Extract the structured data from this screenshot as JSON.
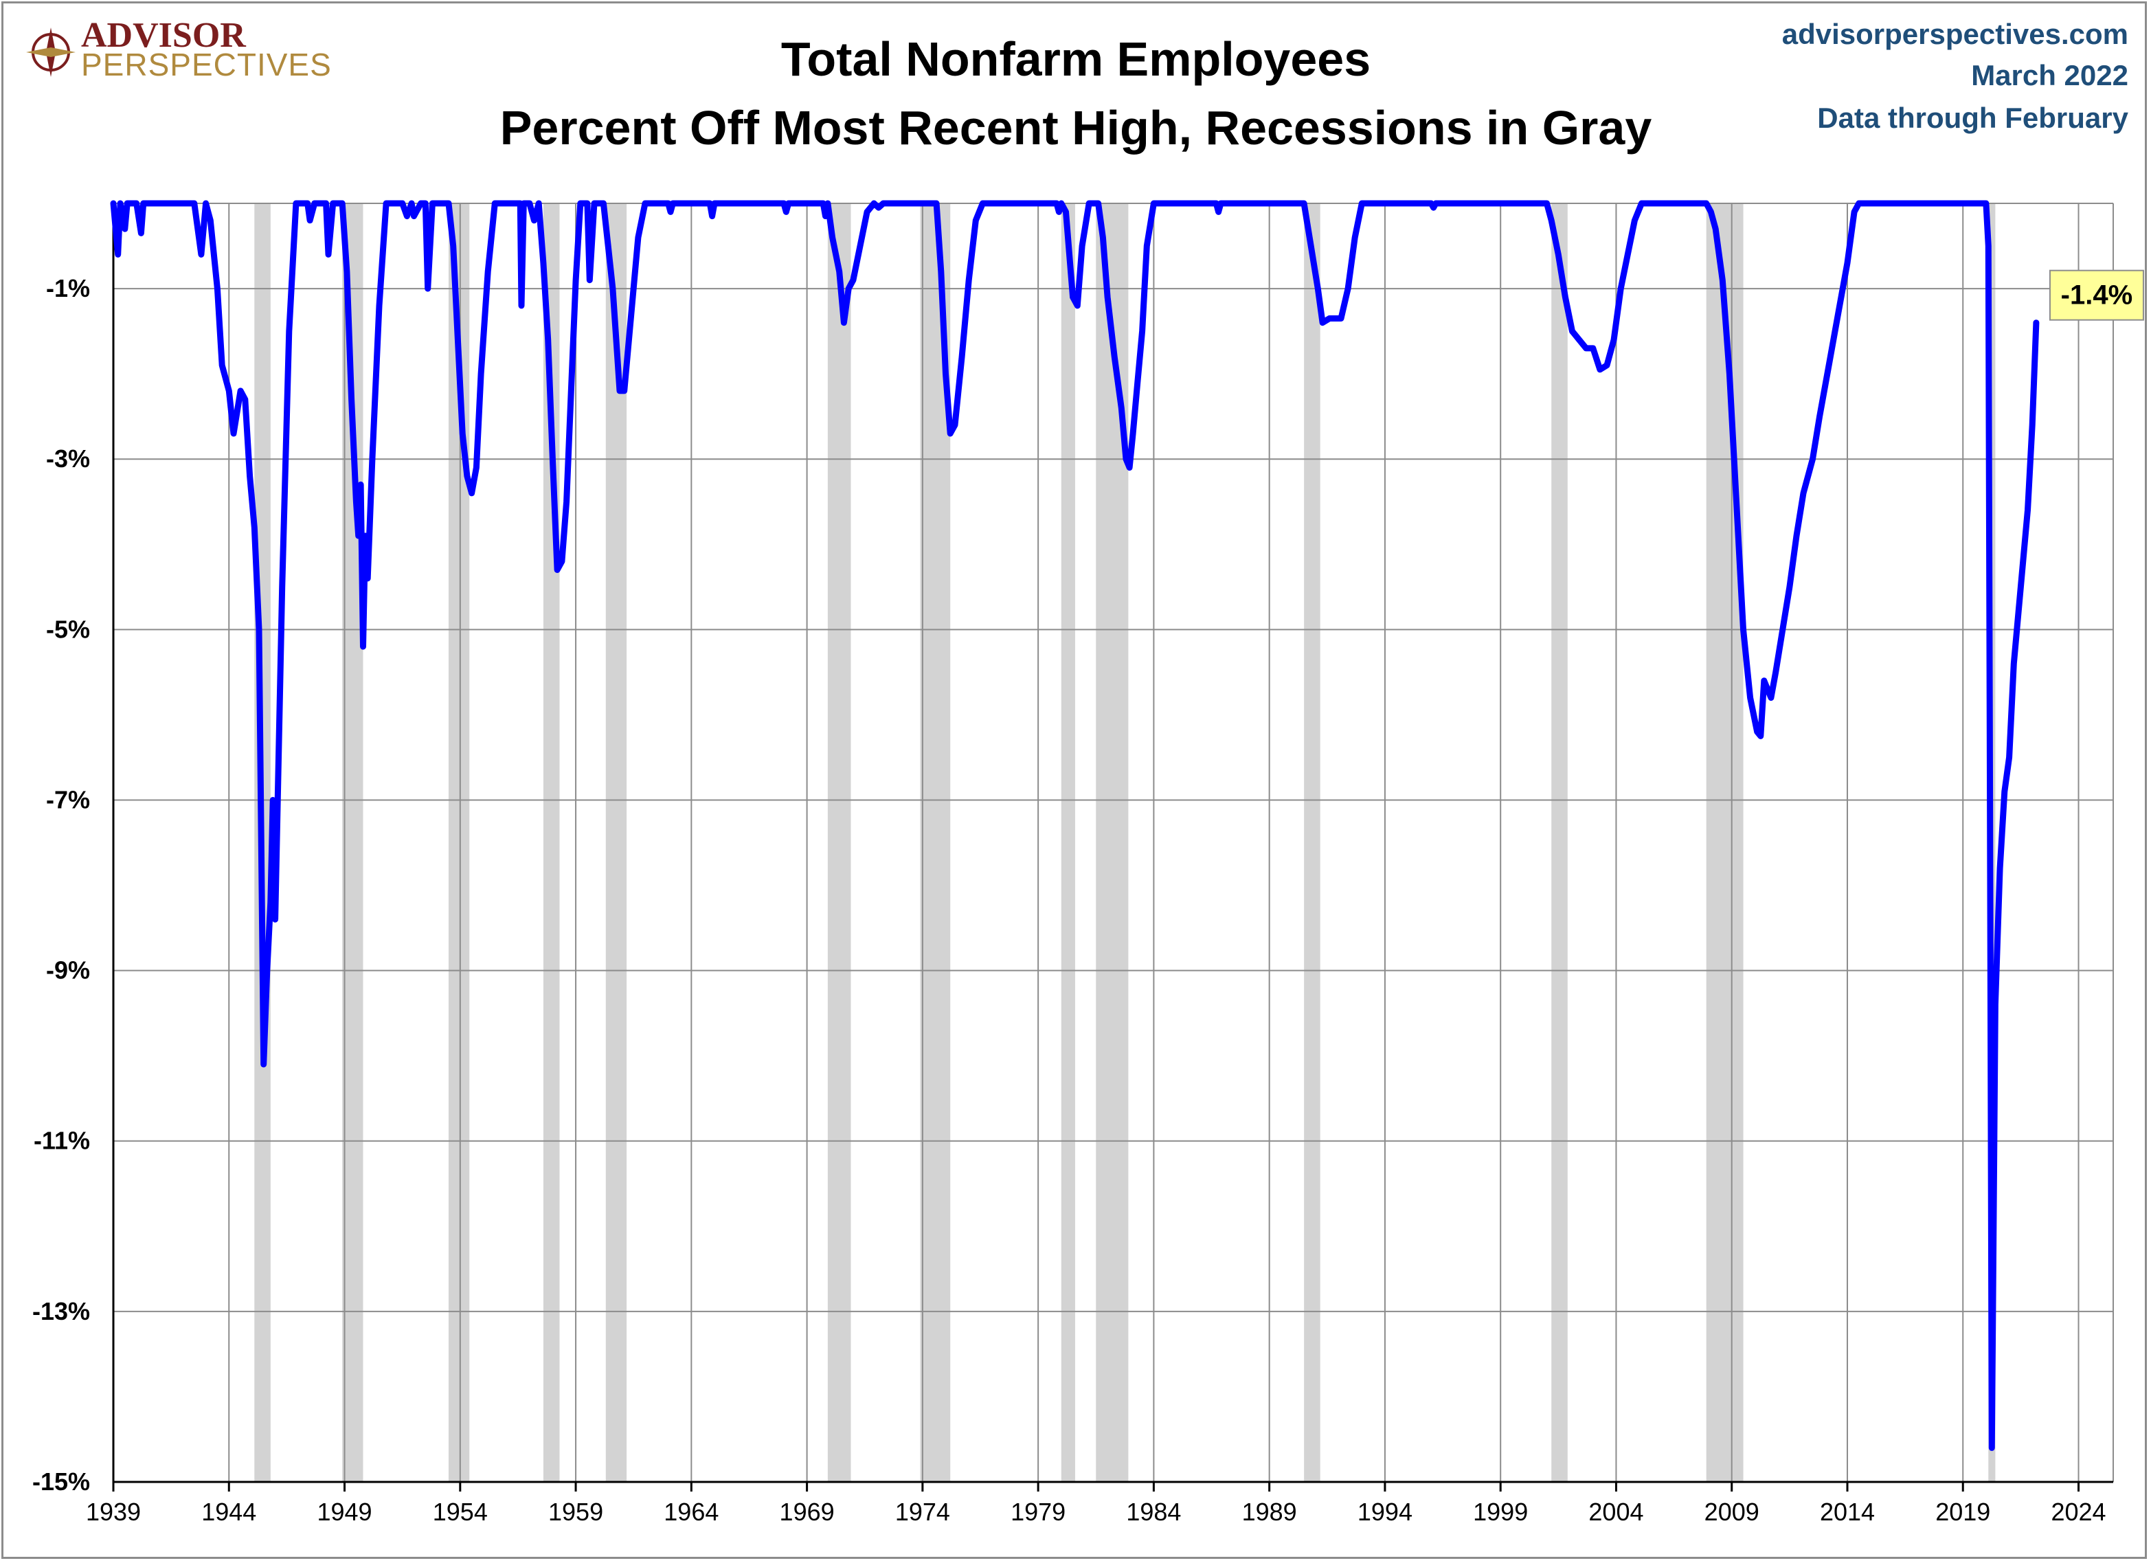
{
  "logo": {
    "line1": "ADVISOR",
    "line2": "PERSPECTIVES"
  },
  "source": {
    "site": "advisorperspectives.com",
    "date": "March 2022",
    "note": "Data through February",
    "color": "#1f4e79"
  },
  "chart_data": {
    "type": "line",
    "title": "Total Nonfarm Employees",
    "subtitle": "Percent Off Most Recent High, Recessions in Gray",
    "xlabel": "",
    "ylabel": "",
    "xlim": [
      1939,
      2025.5
    ],
    "ylim": [
      -15,
      0
    ],
    "x_ticks": [
      1939,
      1944,
      1949,
      1954,
      1959,
      1964,
      1969,
      1974,
      1979,
      1984,
      1989,
      1994,
      1999,
      2004,
      2009,
      2014,
      2019,
      2024
    ],
    "x_tick_labels": [
      "1939",
      "1944",
      "1949",
      "1954",
      "1959",
      "1964",
      "1969",
      "1974",
      "1979",
      "1984",
      "1989",
      "1994",
      "1999",
      "2004",
      "2009",
      "2014",
      "2019",
      "2024"
    ],
    "y_ticks": [
      -1,
      -3,
      -5,
      -7,
      -9,
      -11,
      -13,
      -15
    ],
    "y_tick_labels": [
      "-1%",
      "-3%",
      "-5%",
      "-7%",
      "-9%",
      "-11%",
      "-13%",
      "-15%"
    ],
    "grid": true,
    "line_color": "#0000ff",
    "recession_color": "#d3d3d3",
    "recessions": [
      [
        1945.1,
        1945.8
      ],
      [
        1948.9,
        1949.8
      ],
      [
        1953.5,
        1954.4
      ],
      [
        1957.6,
        1958.3
      ],
      [
        1960.3,
        1961.2
      ],
      [
        1969.9,
        1970.9
      ],
      [
        1973.9,
        1975.2
      ],
      [
        1980.0,
        1980.6
      ],
      [
        1981.5,
        1982.9
      ],
      [
        1990.5,
        1991.2
      ],
      [
        2001.2,
        2001.9
      ],
      [
        2007.9,
        2009.5
      ],
      [
        2020.1,
        2020.4
      ]
    ],
    "series": [
      {
        "points": [
          [
            1939.0,
            0
          ],
          [
            1939.2,
            -0.6
          ],
          [
            1939.3,
            0
          ],
          [
            1939.5,
            -0.3
          ],
          [
            1939.6,
            0
          ],
          [
            1940.0,
            0
          ],
          [
            1940.2,
            -0.35
          ],
          [
            1940.3,
            0
          ],
          [
            1941.0,
            0
          ],
          [
            1942.5,
            0
          ],
          [
            1942.8,
            -0.6
          ],
          [
            1943.0,
            0
          ],
          [
            1943.2,
            -0.2
          ],
          [
            1943.5,
            -1.0
          ],
          [
            1943.7,
            -1.9
          ],
          [
            1944.0,
            -2.2
          ],
          [
            1944.2,
            -2.7
          ],
          [
            1944.5,
            -2.2
          ],
          [
            1944.7,
            -2.3
          ],
          [
            1944.9,
            -3.2
          ],
          [
            1945.1,
            -3.8
          ],
          [
            1945.3,
            -5.0
          ],
          [
            1945.5,
            -10.1
          ],
          [
            1945.65,
            -9.0
          ],
          [
            1945.8,
            -8.2
          ],
          [
            1945.9,
            -7.0
          ],
          [
            1946.0,
            -8.4
          ],
          [
            1946.3,
            -4.5
          ],
          [
            1946.6,
            -1.5
          ],
          [
            1946.9,
            0
          ],
          [
            1947.4,
            0
          ],
          [
            1947.5,
            -0.2
          ],
          [
            1947.7,
            0
          ],
          [
            1948.2,
            0
          ],
          [
            1948.3,
            -0.6
          ],
          [
            1948.5,
            0
          ],
          [
            1948.9,
            0
          ],
          [
            1949.1,
            -0.8
          ],
          [
            1949.3,
            -2.3
          ],
          [
            1949.5,
            -3.5
          ],
          [
            1949.6,
            -3.9
          ],
          [
            1949.7,
            -3.3
          ],
          [
            1949.8,
            -5.2
          ],
          [
            1949.9,
            -3.9
          ],
          [
            1950.0,
            -4.4
          ],
          [
            1950.2,
            -3.0
          ],
          [
            1950.5,
            -1.2
          ],
          [
            1950.8,
            0
          ],
          [
            1951.5,
            0
          ],
          [
            1951.7,
            -0.15
          ],
          [
            1951.9,
            0
          ],
          [
            1952.0,
            -0.15
          ],
          [
            1952.3,
            0
          ],
          [
            1952.5,
            0
          ],
          [
            1952.6,
            -1.0
          ],
          [
            1952.8,
            0
          ],
          [
            1953.5,
            0
          ],
          [
            1953.7,
            -0.5
          ],
          [
            1953.9,
            -1.6
          ],
          [
            1954.1,
            -2.7
          ],
          [
            1954.3,
            -3.2
          ],
          [
            1954.5,
            -3.4
          ],
          [
            1954.7,
            -3.1
          ],
          [
            1954.9,
            -2.0
          ],
          [
            1955.2,
            -0.8
          ],
          [
            1955.5,
            0
          ],
          [
            1956.6,
            0
          ],
          [
            1956.65,
            -1.2
          ],
          [
            1956.75,
            0
          ],
          [
            1957.0,
            0
          ],
          [
            1957.2,
            -0.2
          ],
          [
            1957.4,
            0
          ],
          [
            1957.6,
            -0.7
          ],
          [
            1957.8,
            -1.6
          ],
          [
            1958.0,
            -3.0
          ],
          [
            1958.2,
            -4.3
          ],
          [
            1958.4,
            -4.2
          ],
          [
            1958.6,
            -3.5
          ],
          [
            1958.8,
            -2.2
          ],
          [
            1959.0,
            -0.9
          ],
          [
            1959.2,
            0
          ],
          [
            1959.5,
            0
          ],
          [
            1959.6,
            -0.9
          ],
          [
            1959.8,
            0
          ],
          [
            1960.2,
            0
          ],
          [
            1960.4,
            -0.5
          ],
          [
            1960.6,
            -1.0
          ],
          [
            1960.9,
            -2.2
          ],
          [
            1961.1,
            -2.2
          ],
          [
            1961.4,
            -1.3
          ],
          [
            1961.7,
            -0.4
          ],
          [
            1962.0,
            0
          ],
          [
            1963.0,
            0
          ],
          [
            1963.1,
            -0.1
          ],
          [
            1963.2,
            0
          ],
          [
            1964.8,
            0
          ],
          [
            1964.9,
            -0.15
          ],
          [
            1965.0,
            0
          ],
          [
            1968.0,
            0
          ],
          [
            1968.1,
            -0.1
          ],
          [
            1968.2,
            0
          ],
          [
            1969.7,
            0
          ],
          [
            1969.8,
            -0.15
          ],
          [
            1969.9,
            0
          ],
          [
            1970.1,
            -0.4
          ],
          [
            1970.4,
            -0.8
          ],
          [
            1970.6,
            -1.4
          ],
          [
            1970.8,
            -1.0
          ],
          [
            1971.0,
            -0.9
          ],
          [
            1971.3,
            -0.5
          ],
          [
            1971.6,
            -0.1
          ],
          [
            1971.9,
            0
          ],
          [
            1972.1,
            -0.05
          ],
          [
            1972.3,
            0
          ],
          [
            1974.6,
            0
          ],
          [
            1974.8,
            -0.8
          ],
          [
            1975.0,
            -2.0
          ],
          [
            1975.2,
            -2.7
          ],
          [
            1975.4,
            -2.6
          ],
          [
            1975.7,
            -1.8
          ],
          [
            1976.0,
            -0.9
          ],
          [
            1976.3,
            -0.2
          ],
          [
            1976.6,
            0
          ],
          [
            1979.8,
            0
          ],
          [
            1979.9,
            -0.1
          ],
          [
            1980.0,
            0
          ],
          [
            1980.2,
            -0.1
          ],
          [
            1980.5,
            -1.1
          ],
          [
            1980.7,
            -1.2
          ],
          [
            1980.9,
            -0.5
          ],
          [
            1981.2,
            0
          ],
          [
            1981.6,
            0
          ],
          [
            1981.8,
            -0.4
          ],
          [
            1982.0,
            -1.1
          ],
          [
            1982.3,
            -1.8
          ],
          [
            1982.6,
            -2.4
          ],
          [
            1982.8,
            -3.0
          ],
          [
            1982.95,
            -3.1
          ],
          [
            1983.1,
            -2.7
          ],
          [
            1983.3,
            -2.1
          ],
          [
            1983.5,
            -1.5
          ],
          [
            1983.7,
            -0.5
          ],
          [
            1984.0,
            0
          ],
          [
            1986.7,
            0
          ],
          [
            1986.8,
            -0.1
          ],
          [
            1986.9,
            0
          ],
          [
            1990.5,
            0
          ],
          [
            1990.8,
            -0.5
          ],
          [
            1991.1,
            -1.0
          ],
          [
            1991.3,
            -1.4
          ],
          [
            1991.6,
            -1.35
          ],
          [
            1991.9,
            -1.35
          ],
          [
            1992.1,
            -1.35
          ],
          [
            1992.4,
            -1.0
          ],
          [
            1992.7,
            -0.4
          ],
          [
            1993.0,
            0
          ],
          [
            1996.0,
            0
          ],
          [
            1996.1,
            -0.05
          ],
          [
            1996.2,
            0
          ],
          [
            2001.0,
            0
          ],
          [
            2001.2,
            -0.2
          ],
          [
            2001.5,
            -0.6
          ],
          [
            2001.8,
            -1.1
          ],
          [
            2002.1,
            -1.5
          ],
          [
            2002.4,
            -1.6
          ],
          [
            2002.7,
            -1.7
          ],
          [
            2003.0,
            -1.7
          ],
          [
            2003.3,
            -1.95
          ],
          [
            2003.6,
            -1.9
          ],
          [
            2003.9,
            -1.6
          ],
          [
            2004.2,
            -1.0
          ],
          [
            2004.5,
            -0.6
          ],
          [
            2004.8,
            -0.2
          ],
          [
            2005.1,
            0
          ],
          [
            2007.9,
            0
          ],
          [
            2008.1,
            -0.1
          ],
          [
            2008.3,
            -0.3
          ],
          [
            2008.6,
            -0.9
          ],
          [
            2008.9,
            -2.0
          ],
          [
            2009.2,
            -3.5
          ],
          [
            2009.5,
            -5.0
          ],
          [
            2009.8,
            -5.8
          ],
          [
            2010.1,
            -6.2
          ],
          [
            2010.25,
            -6.25
          ],
          [
            2010.4,
            -5.6
          ],
          [
            2010.7,
            -5.8
          ],
          [
            2010.9,
            -5.5
          ],
          [
            2011.2,
            -5.0
          ],
          [
            2011.5,
            -4.5
          ],
          [
            2011.8,
            -3.9
          ],
          [
            2012.1,
            -3.4
          ],
          [
            2012.5,
            -3.0
          ],
          [
            2012.8,
            -2.5
          ],
          [
            2013.2,
            -1.9
          ],
          [
            2013.6,
            -1.3
          ],
          [
            2014.0,
            -0.7
          ],
          [
            2014.3,
            -0.1
          ],
          [
            2014.5,
            0
          ],
          [
            2020.0,
            0
          ],
          [
            2020.1,
            -0.5
          ],
          [
            2020.25,
            -14.6
          ],
          [
            2020.4,
            -9.4
          ],
          [
            2020.6,
            -7.8
          ],
          [
            2020.8,
            -6.9
          ],
          [
            2021.0,
            -6.5
          ],
          [
            2021.2,
            -5.4
          ],
          [
            2021.5,
            -4.5
          ],
          [
            2021.8,
            -3.6
          ],
          [
            2022.0,
            -2.6
          ],
          [
            2022.17,
            -1.4
          ]
        ]
      }
    ],
    "annotations": [
      {
        "text": "-1.4%",
        "x": 2022.17,
        "y": -1.4
      }
    ]
  }
}
